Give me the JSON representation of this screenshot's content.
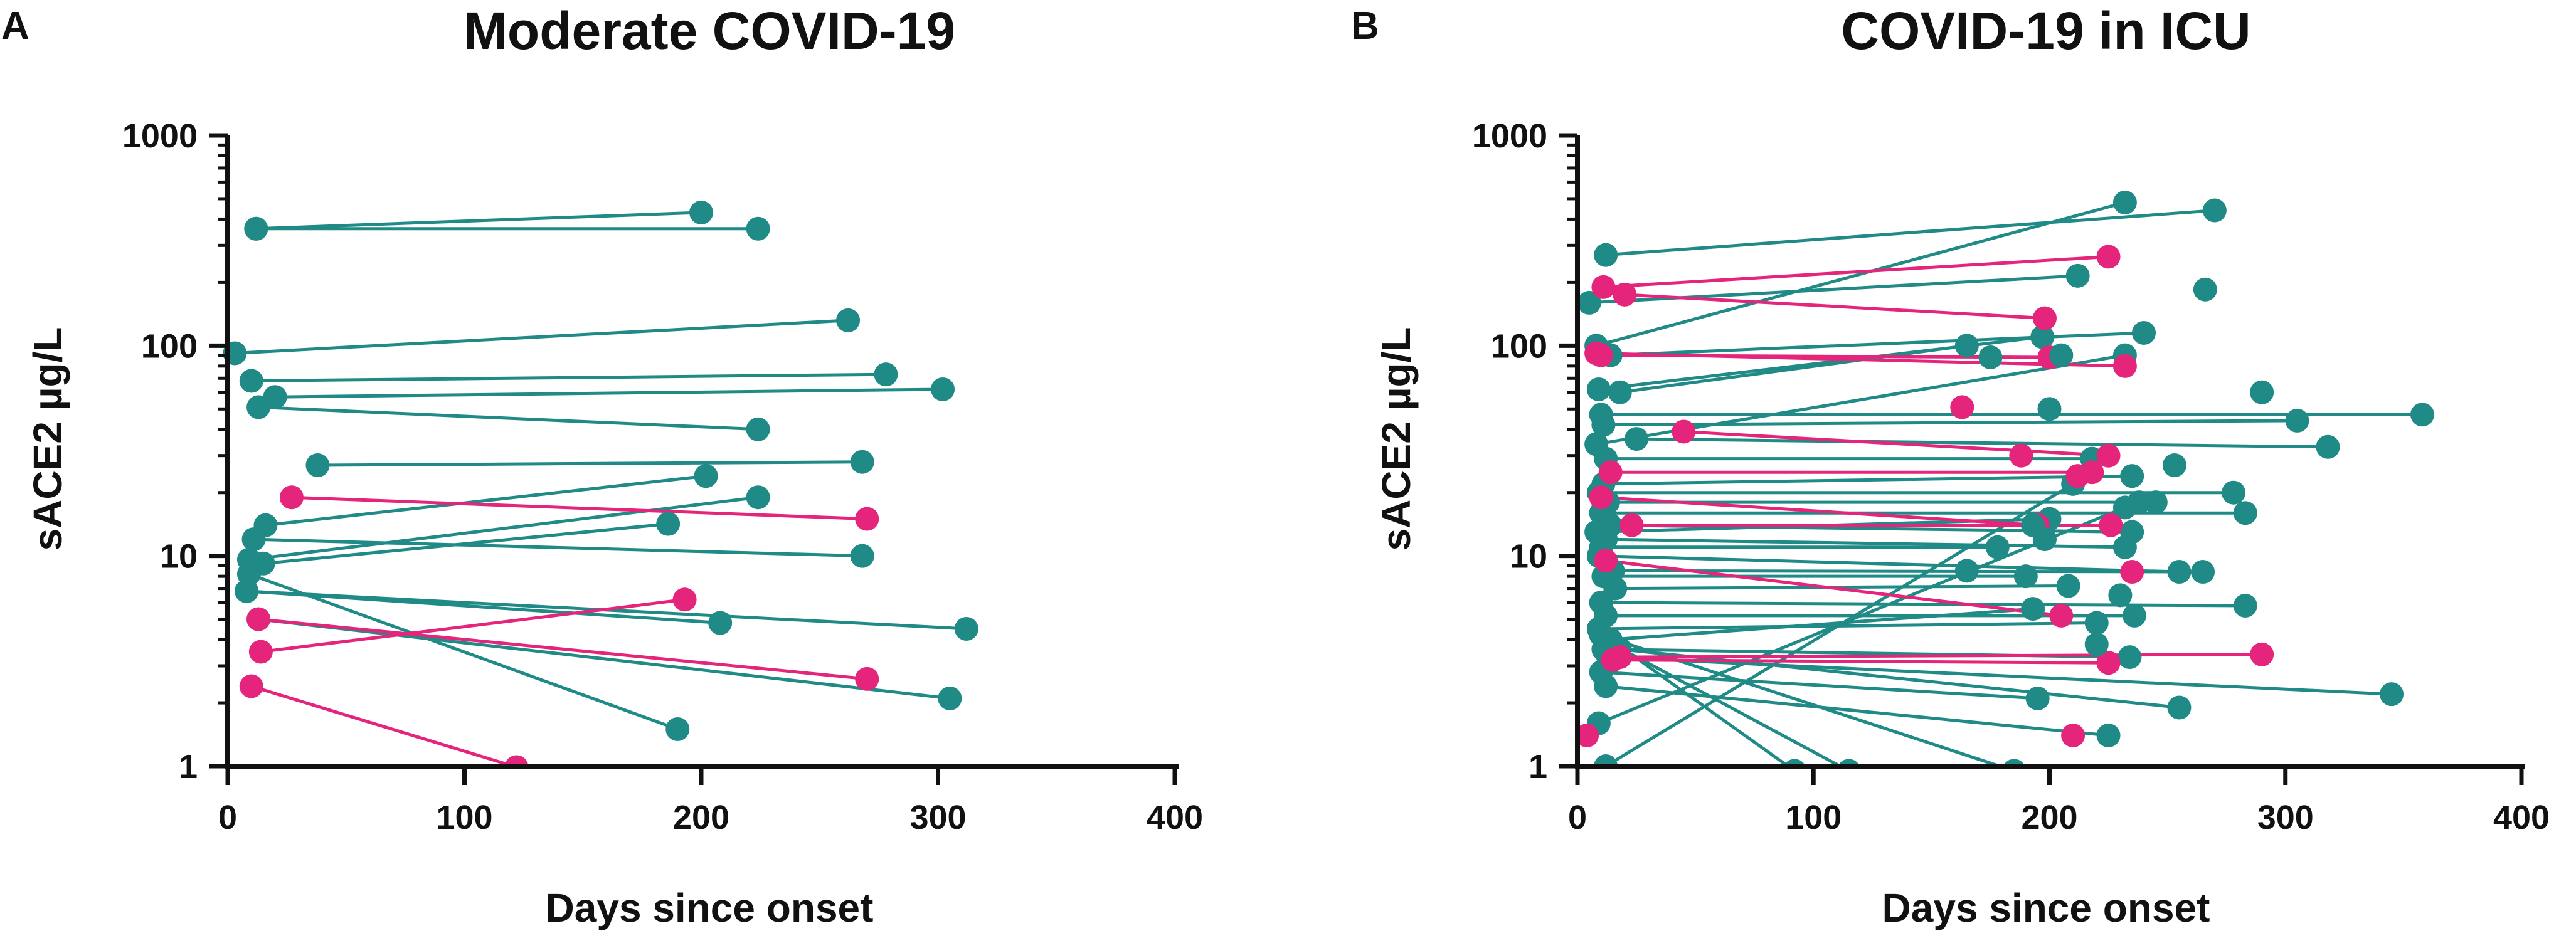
{
  "colors": {
    "teal": "#1f8a86",
    "pink": "#e5247b",
    "axis": "#111111"
  },
  "chart_data": [
    {
      "panel": "A",
      "type": "scatter",
      "title": "Moderate COVID-19",
      "xlabel": "Days since onset",
      "ylabel": "sACE2 µg/L",
      "xlim": [
        0,
        400
      ],
      "ylim": [
        1,
        1000
      ],
      "yscale": "log",
      "xticks": [
        "0",
        "100",
        "200",
        "300",
        "400"
      ],
      "yticks": [
        "1",
        "10",
        "100",
        "1000"
      ],
      "segments": [
        {
          "group": "teal",
          "x1": 12,
          "y1": 360,
          "x2": 200,
          "y2": 430
        },
        {
          "group": "teal",
          "x1": 12,
          "y1": 360,
          "x2": 224,
          "y2": 360
        },
        {
          "group": "teal",
          "x1": 3,
          "y1": 92,
          "x2": 262,
          "y2": 132
        },
        {
          "group": "teal",
          "x1": 10,
          "y1": 68,
          "x2": 278,
          "y2": 73
        },
        {
          "group": "teal",
          "x1": 20,
          "y1": 57,
          "x2": 302,
          "y2": 62
        },
        {
          "group": "teal",
          "x1": 13,
          "y1": 51,
          "x2": 224,
          "y2": 40
        },
        {
          "group": "teal",
          "x1": 38,
          "y1": 27,
          "x2": 268,
          "y2": 28
        },
        {
          "group": "teal",
          "x1": 16,
          "y1": 14,
          "x2": 202,
          "y2": 24
        },
        {
          "group": "teal",
          "x1": 11,
          "y1": 12,
          "x2": 268,
          "y2": 10
        },
        {
          "group": "teal",
          "x1": 9,
          "y1": 9.6,
          "x2": 224,
          "y2": 19
        },
        {
          "group": "teal",
          "x1": 15,
          "y1": 9.2,
          "x2": 186,
          "y2": 14.2
        },
        {
          "group": "teal",
          "x1": 9,
          "y1": 8.2,
          "x2": 190,
          "y2": 1.5
        },
        {
          "group": "teal",
          "x1": 8,
          "y1": 6.8,
          "x2": 208,
          "y2": 4.8
        },
        {
          "group": "teal",
          "x1": 8,
          "y1": 6.8,
          "x2": 312,
          "y2": 4.5
        },
        {
          "group": "teal",
          "x1": 13,
          "y1": 5,
          "x2": 305,
          "y2": 2.1
        },
        {
          "group": "pink",
          "x1": 27,
          "y1": 19,
          "x2": 270,
          "y2": 15
        },
        {
          "group": "pink",
          "x1": 14,
          "y1": 3.5,
          "x2": 193,
          "y2": 6.2
        },
        {
          "group": "pink",
          "x1": 13,
          "y1": 5,
          "x2": 270,
          "y2": 2.6
        },
        {
          "group": "pink",
          "x1": 10,
          "y1": 2.4,
          "x2": 122,
          "y2": 0.99
        }
      ]
    },
    {
      "panel": "B",
      "type": "scatter",
      "title": "COVID-19 in ICU",
      "xlabel": "Days since onset",
      "ylabel": "sACE2 µg/L",
      "xlim": [
        0,
        400
      ],
      "ylim": [
        1,
        1000
      ],
      "yscale": "log",
      "xticks": [
        "0",
        "100",
        "200",
        "300",
        "400"
      ],
      "yticks": [
        "1",
        "10",
        "100",
        "1000"
      ],
      "segments": [
        {
          "group": "teal",
          "x1": 12,
          "y1": 270,
          "x2": 270,
          "y2": 440
        },
        {
          "group": "teal",
          "x1": 8,
          "y1": 100,
          "x2": 232,
          "y2": 480
        },
        {
          "group": "teal",
          "x1": 5,
          "y1": 160,
          "x2": 212,
          "y2": 215
        },
        {
          "group": "teal",
          "x1": 14,
          "y1": 90,
          "x2": 240,
          "y2": 115
        },
        {
          "group": "teal",
          "x1": 18,
          "y1": 60,
          "x2": 165,
          "y2": 100
        },
        {
          "group": "teal",
          "x1": 9,
          "y1": 62,
          "x2": 197,
          "y2": 110
        },
        {
          "group": "teal",
          "x1": 10,
          "y1": 47,
          "x2": 358,
          "y2": 47
        },
        {
          "group": "teal",
          "x1": 11,
          "y1": 42,
          "x2": 305,
          "y2": 44
        },
        {
          "group": "teal",
          "x1": 25,
          "y1": 36,
          "x2": 318,
          "y2": 33
        },
        {
          "group": "teal",
          "x1": 8,
          "y1": 34,
          "x2": 232,
          "y2": 90
        },
        {
          "group": "teal",
          "x1": 12,
          "y1": 29,
          "x2": 218,
          "y2": 29
        },
        {
          "group": "teal",
          "x1": 11,
          "y1": 22,
          "x2": 235,
          "y2": 24
        },
        {
          "group": "teal",
          "x1": 9,
          "y1": 20,
          "x2": 278,
          "y2": 20
        },
        {
          "group": "teal",
          "x1": 13,
          "y1": 18,
          "x2": 238,
          "y2": 18
        },
        {
          "group": "teal",
          "x1": 10,
          "y1": 16,
          "x2": 283,
          "y2": 16
        },
        {
          "group": "teal",
          "x1": 14,
          "y1": 14,
          "x2": 235,
          "y2": 13
        },
        {
          "group": "teal",
          "x1": 8,
          "y1": 13,
          "x2": 200,
          "y2": 15
        },
        {
          "group": "teal",
          "x1": 12,
          "y1": 12,
          "x2": 232,
          "y2": 11
        },
        {
          "group": "teal",
          "x1": 10,
          "y1": 11,
          "x2": 178,
          "y2": 11
        },
        {
          "group": "teal",
          "x1": 9,
          "y1": 10,
          "x2": 255,
          "y2": 8.4
        },
        {
          "group": "teal",
          "x1": 15,
          "y1": 8.5,
          "x2": 265,
          "y2": 8.4
        },
        {
          "group": "teal",
          "x1": 11,
          "y1": 8,
          "x2": 190,
          "y2": 8
        },
        {
          "group": "teal",
          "x1": 16,
          "y1": 7,
          "x2": 208,
          "y2": 7.2
        },
        {
          "group": "teal",
          "x1": 10,
          "y1": 6,
          "x2": 283,
          "y2": 5.8
        },
        {
          "group": "teal",
          "x1": 12,
          "y1": 5.2,
          "x2": 236,
          "y2": 5.2
        },
        {
          "group": "teal",
          "x1": 9,
          "y1": 4.5,
          "x2": 220,
          "y2": 4.8
        },
        {
          "group": "teal",
          "x1": 14,
          "y1": 4,
          "x2": 193,
          "y2": 5.6
        },
        {
          "group": "teal",
          "x1": 11,
          "y1": 3.6,
          "x2": 234,
          "y2": 3.3
        },
        {
          "group": "teal",
          "x1": 13,
          "y1": 3.3,
          "x2": 345,
          "y2": 2.2
        },
        {
          "group": "teal",
          "x1": 10,
          "y1": 2.8,
          "x2": 195,
          "y2": 2.1
        },
        {
          "group": "teal",
          "x1": 12,
          "y1": 2.4,
          "x2": 225,
          "y2": 1.4
        },
        {
          "group": "teal",
          "x1": 9,
          "y1": 1.6,
          "x2": 232,
          "y2": 17
        },
        {
          "group": "teal",
          "x1": 12,
          "y1": 1,
          "x2": 210,
          "y2": 22
        },
        {
          "group": "teal",
          "x1": 15,
          "y1": 3.8,
          "x2": 115,
          "y2": 0.95
        },
        {
          "group": "teal",
          "x1": 14,
          "y1": 4,
          "x2": 92,
          "y2": 0.95
        },
        {
          "group": "teal",
          "x1": 10,
          "y1": 4.2,
          "x2": 185,
          "y2": 0.95
        },
        {
          "group": "teal",
          "x1": 18,
          "y1": 3.6,
          "x2": 255,
          "y2": 1.9
        },
        {
          "group": "pink",
          "x1": 11,
          "y1": 190,
          "x2": 225,
          "y2": 265
        },
        {
          "group": "pink",
          "x1": 20,
          "y1": 175,
          "x2": 198,
          "y2": 135
        },
        {
          "group": "pink",
          "x1": 8,
          "y1": 92,
          "x2": 232,
          "y2": 80
        },
        {
          "group": "pink",
          "x1": 10,
          "y1": 90,
          "x2": 200,
          "y2": 88
        },
        {
          "group": "pink",
          "x1": 45,
          "y1": 39,
          "x2": 225,
          "y2": 30
        },
        {
          "group": "pink",
          "x1": 14,
          "y1": 25,
          "x2": 218,
          "y2": 25
        },
        {
          "group": "pink",
          "x1": 10,
          "y1": 19,
          "x2": 195,
          "y2": 14
        },
        {
          "group": "pink",
          "x1": 23,
          "y1": 14,
          "x2": 226,
          "y2": 14
        },
        {
          "group": "pink",
          "x1": 12,
          "y1": 9.5,
          "x2": 205,
          "y2": 5.2
        },
        {
          "group": "pink",
          "x1": 18,
          "y1": 3.3,
          "x2": 290,
          "y2": 3.4
        },
        {
          "group": "pink",
          "x1": 15,
          "y1": 3.2,
          "x2": 225,
          "y2": 3.1
        }
      ],
      "points": [
        {
          "group": "pink",
          "x": 4,
          "y": 1.4
        },
        {
          "group": "pink",
          "x": 210,
          "y": 1.4
        },
        {
          "group": "pink",
          "x": 163,
          "y": 51
        },
        {
          "group": "pink",
          "x": 188,
          "y": 30
        },
        {
          "group": "pink",
          "x": 212,
          "y": 24
        },
        {
          "group": "pink",
          "x": 235,
          "y": 8.4
        },
        {
          "group": "teal",
          "x": 200,
          "y": 50
        },
        {
          "group": "teal",
          "x": 290,
          "y": 60
        },
        {
          "group": "teal",
          "x": 266,
          "y": 185
        },
        {
          "group": "teal",
          "x": 175,
          "y": 88
        },
        {
          "group": "teal",
          "x": 205,
          "y": 90
        },
        {
          "group": "teal",
          "x": 253,
          "y": 27
        },
        {
          "group": "teal",
          "x": 245,
          "y": 18
        },
        {
          "group": "teal",
          "x": 198,
          "y": 12
        },
        {
          "group": "teal",
          "x": 165,
          "y": 8.5
        },
        {
          "group": "teal",
          "x": 230,
          "y": 6.5
        },
        {
          "group": "teal",
          "x": 220,
          "y": 3.8
        },
        {
          "group": "teal",
          "x": 193,
          "y": 14
        }
      ]
    }
  ]
}
